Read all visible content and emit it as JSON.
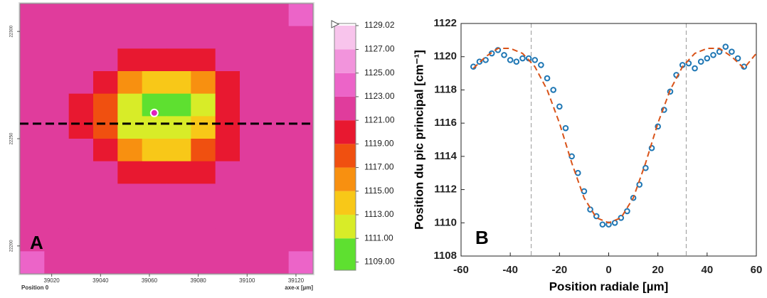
{
  "chart_data": [
    {
      "type": "heatmap",
      "label": "A",
      "corner_label": "Position 0",
      "xlabel": "axe-x [µm]",
      "xlim": [
        39007,
        39127
      ],
      "ylim": [
        22187,
        22313
      ],
      "xticks": [
        39020,
        39040,
        39060,
        39080,
        39100,
        39120
      ],
      "yticks": [
        22200,
        22250,
        22300
      ],
      "clim": [
        1108.3,
        1129.2
      ],
      "cticks": [
        {
          "value": 1109,
          "label": "1109.00"
        },
        {
          "value": 1111,
          "label": "1111.00"
        },
        {
          "value": 1113,
          "label": "1113.00"
        },
        {
          "value": 1115,
          "label": "1115.00"
        },
        {
          "value": 1117,
          "label": "1117.00"
        },
        {
          "value": 1119,
          "label": "1119.00"
        },
        {
          "value": 1121,
          "label": "1121.00"
        },
        {
          "value": 1123,
          "label": "1123.00"
        },
        {
          "value": 1125,
          "label": "1125.00"
        },
        {
          "value": 1127,
          "label": "1127.00"
        },
        1129.02
      ],
      "colors": [
        "#5ee030",
        "#d8ec28",
        "#f8c818",
        "#f89010",
        "#f05010",
        "#e81830",
        "#e03c9c",
        "#ec64c8",
        "#f294dc",
        "#f8c4ec",
        "#fbe6f6"
      ],
      "hline_y": 22257,
      "point": [
        39062,
        22262
      ],
      "values": [
        [
          1122,
          1121,
          1121,
          1121,
          1121,
          1121,
          1121,
          1121,
          1121,
          1121,
          1121,
          1123
        ],
        [
          1122,
          1121,
          1121,
          1121,
          1121,
          1121,
          1121,
          1121,
          1121,
          1121,
          1121,
          1122
        ],
        [
          1121,
          1121,
          1121,
          1121,
          1120,
          1119,
          1119,
          1120,
          1121,
          1121,
          1121,
          1121
        ],
        [
          1121,
          1121,
          1121,
          1119,
          1116,
          1113,
          1113,
          1116,
          1120,
          1121,
          1121,
          1121
        ],
        [
          1121,
          1121,
          1120,
          1117,
          1112,
          1110,
          1110,
          1112,
          1119,
          1121,
          1121,
          1121
        ],
        [
          1121,
          1121,
          1120,
          1117,
          1112,
          1111,
          1111,
          1113,
          1119,
          1121,
          1121,
          1121
        ],
        [
          1121,
          1121,
          1121,
          1119,
          1116,
          1114,
          1114,
          1117,
          1120,
          1121,
          1121,
          1121
        ],
        [
          1121,
          1121,
          1121,
          1121,
          1120,
          1119,
          1119,
          1120,
          1121,
          1121,
          1121,
          1121
        ],
        [
          1121,
          1121,
          1121,
          1121,
          1121,
          1121,
          1121,
          1121,
          1121,
          1121,
          1121,
          1121
        ],
        [
          1121,
          1121,
          1121,
          1121,
          1121,
          1121,
          1121,
          1121,
          1121,
          1121,
          1121,
          1121
        ],
        [
          1122,
          1121,
          1121,
          1121,
          1121,
          1121,
          1121,
          1121,
          1121,
          1121,
          1121,
          1122
        ],
        [
          1124,
          1122,
          1121,
          1121,
          1121,
          1121,
          1121,
          1121,
          1121,
          1121,
          1121,
          1123
        ]
      ]
    },
    {
      "type": "line",
      "label": "B",
      "xlabel": "Position radiale [µm]",
      "ylabel": "Position du pic principal [cm⁻¹]",
      "xlim": [
        -60,
        60
      ],
      "ylim": [
        1108,
        1122
      ],
      "xticks": [
        -60,
        -40,
        -20,
        0,
        20,
        40,
        60
      ],
      "yticks": [
        1108,
        1110,
        1112,
        1114,
        1116,
        1118,
        1120,
        1122
      ],
      "vlines": [
        -31.5,
        31.5
      ],
      "series": [
        {
          "style": "markers",
          "color": "#1f77b4",
          "x": [
            -55,
            -52.5,
            -50,
            -47.5,
            -45,
            -42.5,
            -40,
            -37.5,
            -35,
            -32.5,
            -30,
            -27.5,
            -25,
            -22.5,
            -20,
            -17.5,
            -15,
            -12.5,
            -10,
            -7.5,
            -5,
            -2.5,
            0,
            2.5,
            5,
            7.5,
            10,
            12.5,
            15,
            17.5,
            20,
            22.5,
            25,
            27.5,
            30,
            32.5,
            35,
            37.5,
            40,
            42.5,
            45,
            47.5,
            50,
            52.5,
            55
          ],
          "values": [
            1119.4,
            1119.7,
            1119.8,
            1120.2,
            1120.4,
            1120.1,
            1119.8,
            1119.7,
            1119.9,
            1119.9,
            1119.8,
            1119.5,
            1118.7,
            1118.0,
            1117.0,
            1115.7,
            1114.0,
            1113.0,
            1111.9,
            1110.8,
            1110.4,
            1109.9,
            1109.9,
            1110.0,
            1110.3,
            1110.7,
            1111.5,
            1112.3,
            1113.3,
            1114.5,
            1115.8,
            1116.8,
            1117.9,
            1118.9,
            1119.5,
            1119.6,
            1119.3,
            1119.7,
            1119.9,
            1120.1,
            1120.3,
            1120.6,
            1120.3,
            1119.9,
            1119.4
          ]
        },
        {
          "style": "dashed",
          "color": "#d95319",
          "x": [
            -55,
            -50,
            -45,
            -40,
            -35,
            -30,
            -25,
            -20,
            -15,
            -10,
            -5,
            0,
            5,
            10,
            15,
            20,
            25,
            30,
            35,
            40,
            45,
            50,
            55,
            60
          ],
          "values": [
            1119.3,
            1120.0,
            1120.5,
            1120.5,
            1120.2,
            1119.4,
            1118.0,
            1116.0,
            1113.6,
            1111.5,
            1110.3,
            1110.0,
            1110.3,
            1111.5,
            1113.6,
            1116.0,
            1118.0,
            1119.4,
            1120.2,
            1120.5,
            1120.5,
            1120.0,
            1119.3,
            1120.2
          ]
        }
      ]
    }
  ]
}
